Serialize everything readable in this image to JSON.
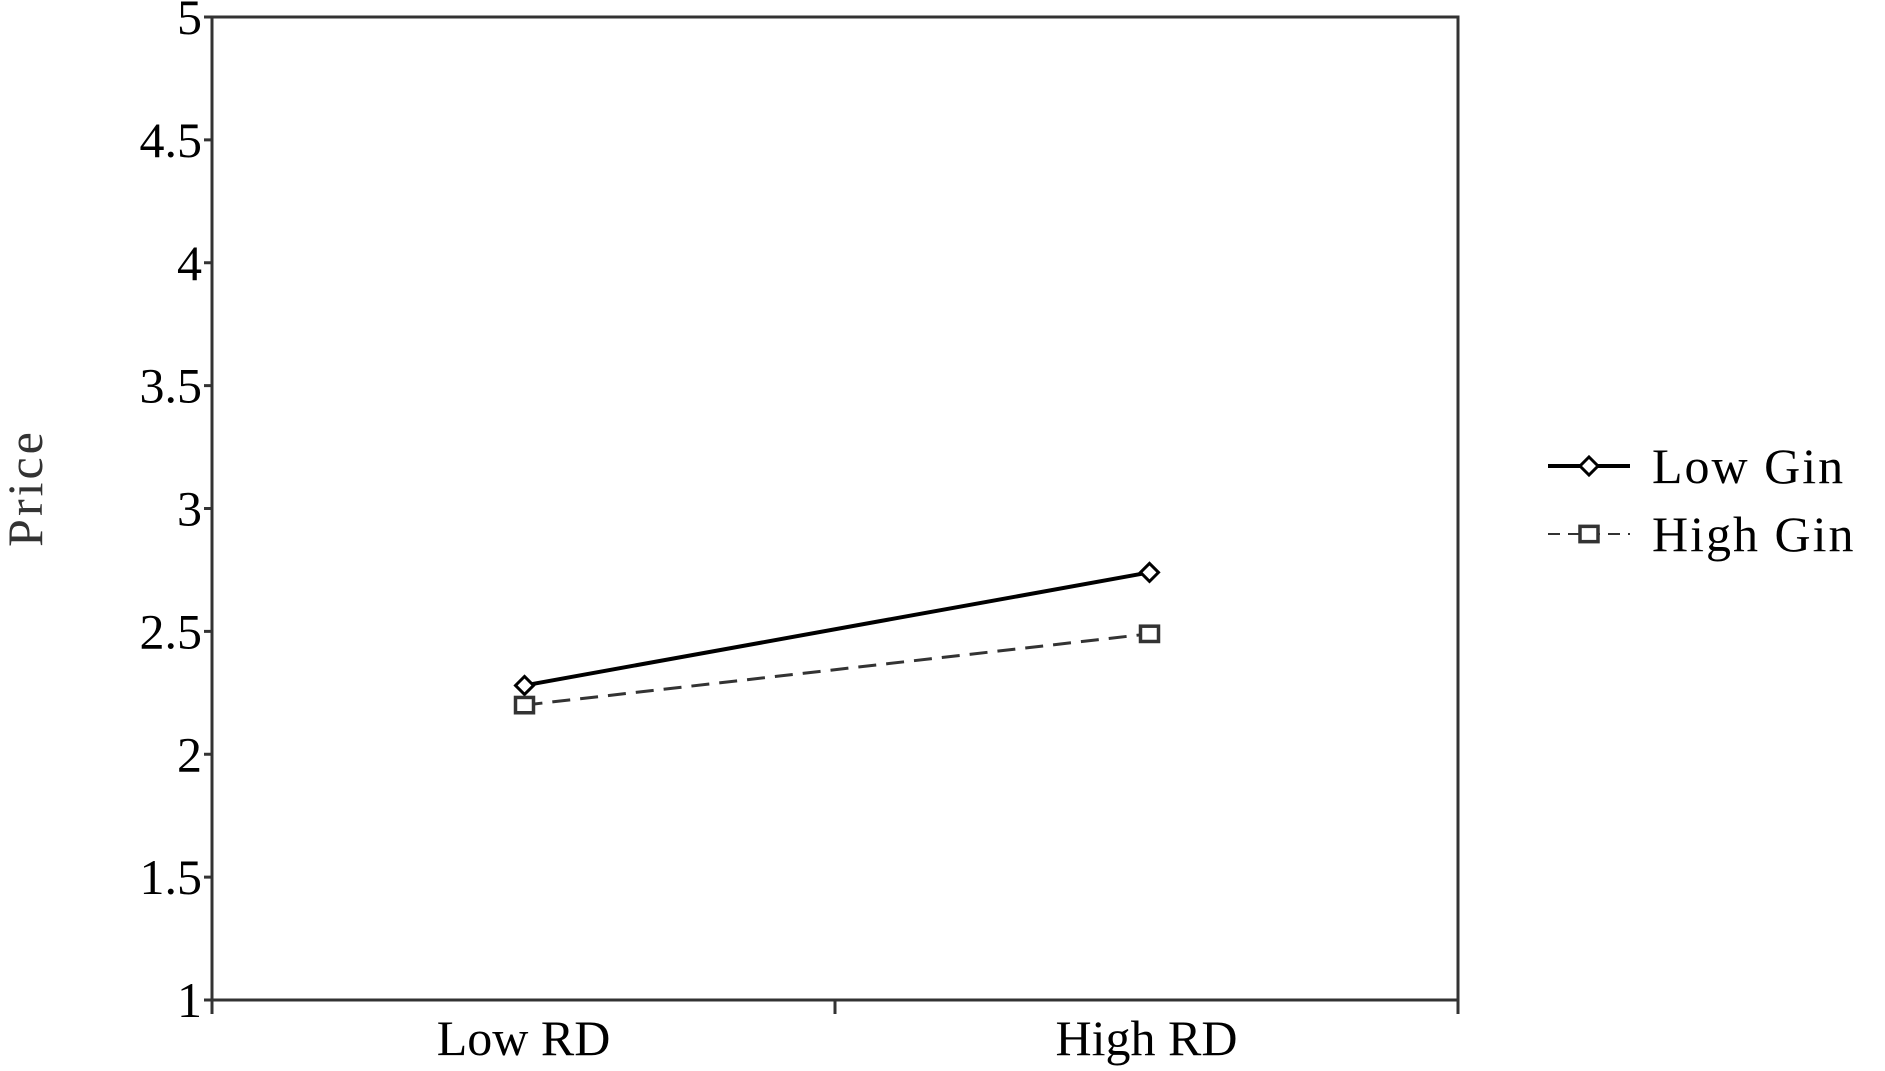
{
  "chart_data": {
    "type": "line",
    "title": "",
    "xlabel": "",
    "ylabel": "Price",
    "categories": [
      "Low RD",
      "High RD"
    ],
    "y_ticks": [
      "1",
      "1.5",
      "2",
      "2.5",
      "3",
      "3.5",
      "4",
      "4.5",
      "5"
    ],
    "ylim": [
      1,
      5
    ],
    "grid": false,
    "legend_position": "right",
    "series": [
      {
        "name": "Low Gin",
        "values": [
          2.28,
          2.74
        ],
        "marker": "diamond",
        "line_style": "solid",
        "color": "#000000"
      },
      {
        "name": "High Gin",
        "values": [
          2.2,
          2.49
        ],
        "marker": "square",
        "line_style": "dashed",
        "color": "#333333"
      }
    ]
  }
}
